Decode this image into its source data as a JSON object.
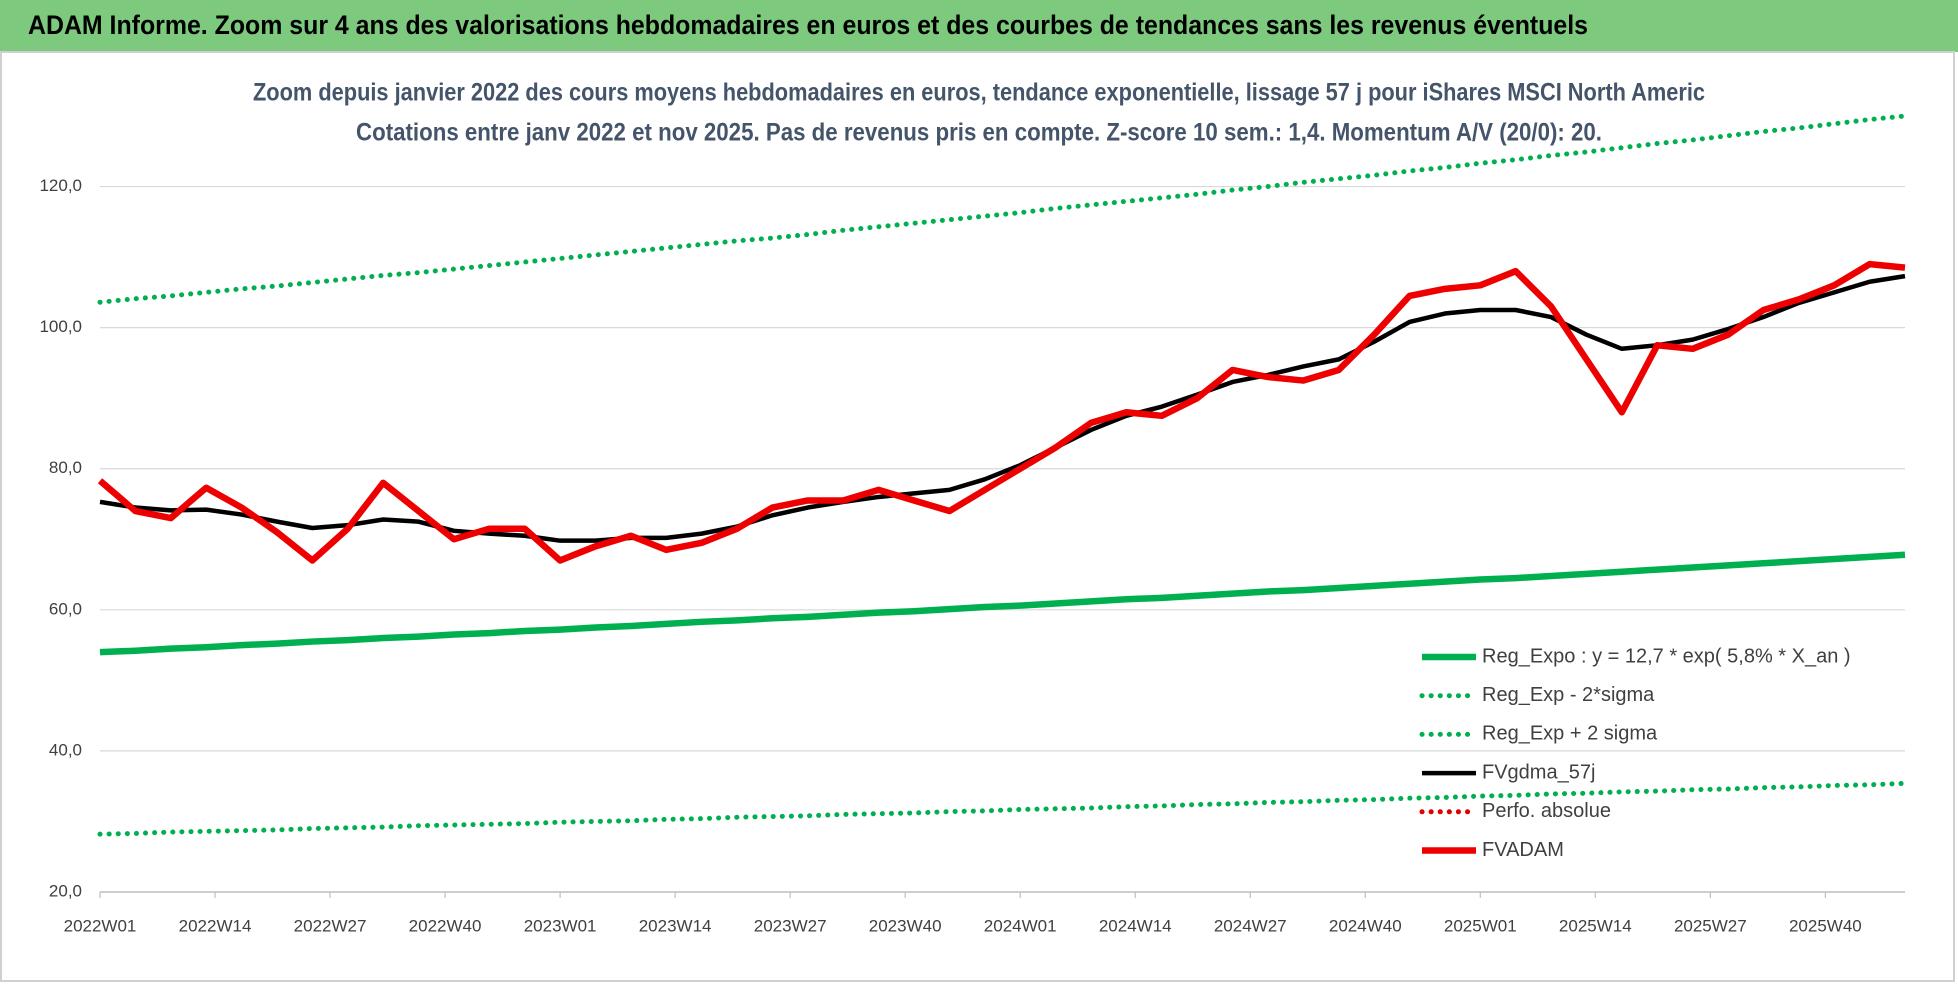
{
  "header": {
    "title": "ADAM Informe. Zoom sur 4 ans des valorisations hebdomadaires en euros et des courbes de tendances sans les revenus éventuels"
  },
  "chart_data": {
    "type": "line",
    "title": "Zoom depuis janvier 2022 des cours moyens hebdomadaires en euros, tendance exponentielle, lissage 57 j pour iShares MSCI North Americ",
    "subtitle": "Cotations entre janv 2022 et nov 2025. Pas de revenus pris en compte. Z-score 10 sem.: 1,4. Momentum A/V (20/0): 20.",
    "x": [
      0,
      4,
      8,
      12,
      16,
      20,
      24,
      28,
      32,
      36,
      40,
      44,
      48,
      52,
      56,
      60,
      64,
      68,
      72,
      76,
      80,
      84,
      88,
      92,
      96,
      100,
      104,
      108,
      112,
      116,
      120,
      124,
      128,
      132,
      136,
      140,
      144,
      148,
      152,
      156,
      160,
      164,
      168,
      172,
      176,
      180,
      184,
      188,
      192,
      196,
      200,
      204
    ],
    "xlim": [
      0,
      204
    ],
    "xticks": [
      {
        "value": 0,
        "label": "2022W01"
      },
      {
        "value": 13,
        "label": "2022W14"
      },
      {
        "value": 26,
        "label": "2022W27"
      },
      {
        "value": 39,
        "label": "2022W40"
      },
      {
        "value": 52,
        "label": "2023W01"
      },
      {
        "value": 65,
        "label": "2023W14"
      },
      {
        "value": 78,
        "label": "2023W27"
      },
      {
        "value": 91,
        "label": "2023W40"
      },
      {
        "value": 104,
        "label": "2024W01"
      },
      {
        "value": 117,
        "label": "2024W14"
      },
      {
        "value": 130,
        "label": "2024W27"
      },
      {
        "value": 143,
        "label": "2024W40"
      },
      {
        "value": 156,
        "label": "2025W01"
      },
      {
        "value": 169,
        "label": "2025W14"
      },
      {
        "value": 182,
        "label": "2025W27"
      },
      {
        "value": 195,
        "label": "2025W40"
      }
    ],
    "ylim": [
      20,
      130
    ],
    "yticks": [
      {
        "value": 20,
        "label": "20,0"
      },
      {
        "value": 40,
        "label": "40,0"
      },
      {
        "value": 60,
        "label": "60,0"
      },
      {
        "value": 80,
        "label": "80,0"
      },
      {
        "value": 100,
        "label": "100,0"
      },
      {
        "value": 120,
        "label": "120,0"
      }
    ],
    "grid": true,
    "legend": "right",
    "series": [
      {
        "name": "Reg_Expo : y = 12,7 * exp( 5,8% *  X_an )",
        "color": "#00b050",
        "style": "solid",
        "values": [
          54.0,
          54.2,
          54.5,
          54.7,
          55.0,
          55.2,
          55.5,
          55.7,
          56.0,
          56.2,
          56.5,
          56.7,
          57.0,
          57.2,
          57.5,
          57.7,
          58.0,
          58.3,
          58.5,
          58.8,
          59.0,
          59.3,
          59.6,
          59.8,
          60.1,
          60.4,
          60.6,
          60.9,
          61.2,
          61.5,
          61.7,
          62.0,
          62.3,
          62.6,
          62.8,
          63.1,
          63.4,
          63.7,
          64.0,
          64.3,
          64.5,
          64.8,
          65.1,
          65.4,
          65.7,
          66.0,
          66.3,
          66.6,
          66.9,
          67.2,
          67.5,
          67.8
        ]
      },
      {
        "name": "Reg_Exp - 2*sigma",
        "color": "#00b050",
        "style": "dotted",
        "values": [
          28.2,
          28.3,
          28.5,
          28.6,
          28.7,
          28.8,
          29.0,
          29.1,
          29.2,
          29.4,
          29.5,
          29.6,
          29.7,
          29.9,
          30.0,
          30.1,
          30.3,
          30.4,
          30.6,
          30.7,
          30.8,
          31.0,
          31.1,
          31.2,
          31.4,
          31.5,
          31.7,
          31.8,
          31.9,
          32.1,
          32.2,
          32.4,
          32.5,
          32.7,
          32.8,
          33.0,
          33.1,
          33.3,
          33.4,
          33.6,
          33.7,
          33.9,
          34.0,
          34.2,
          34.3,
          34.5,
          34.6,
          34.8,
          34.9,
          35.1,
          35.2,
          35.4
        ]
      },
      {
        "name": "Reg_Exp + 2 sigma",
        "color": "#00b050",
        "style": "dotted",
        "values": [
          103.6,
          104.1,
          104.5,
          105.0,
          105.5,
          105.9,
          106.4,
          106.9,
          107.4,
          107.8,
          108.3,
          108.8,
          109.3,
          109.8,
          110.3,
          110.8,
          111.3,
          111.8,
          112.3,
          112.7,
          113.2,
          113.8,
          114.3,
          114.8,
          115.3,
          115.8,
          116.3,
          116.9,
          117.4,
          117.9,
          118.4,
          118.9,
          119.5,
          120.0,
          120.6,
          121.1,
          121.6,
          122.2,
          122.7,
          123.3,
          123.8,
          124.4,
          124.9,
          125.5,
          126.1,
          126.6,
          127.2,
          127.8,
          128.3,
          128.9,
          129.5,
          130.0
        ]
      },
      {
        "name": "FVgdma_57j",
        "color": "#000000",
        "style": "solid",
        "values": [
          75.3,
          74.5,
          74.1,
          74.2,
          73.5,
          72.5,
          71.6,
          72.0,
          72.8,
          72.5,
          71.2,
          70.8,
          70.5,
          69.8,
          69.8,
          70.2,
          70.2,
          70.8,
          71.8,
          73.4,
          74.5,
          75.3,
          76.0,
          76.5,
          77.0,
          78.5,
          80.5,
          83.0,
          85.5,
          87.5,
          88.8,
          90.5,
          92.3,
          93.3,
          94.5,
          95.5,
          98.0,
          100.8,
          102.0,
          102.5,
          102.5,
          101.5,
          99.0,
          97.0,
          97.5,
          98.3,
          99.8,
          101.5,
          103.5,
          105.0,
          106.5,
          107.3
        ]
      },
      {
        "name": "Perfo. absolue",
        "color": "#e00000",
        "style": "dotted",
        "values": [
          null,
          null,
          null,
          null,
          null,
          null,
          null,
          null,
          null,
          null,
          null,
          null,
          null,
          null,
          null,
          null,
          null,
          null,
          null,
          null,
          null,
          null,
          null,
          null,
          null,
          null,
          null,
          null,
          null,
          null,
          null,
          null,
          null,
          null,
          null,
          null,
          null,
          null,
          null,
          null,
          null,
          null,
          null,
          null,
          null,
          null,
          null,
          null,
          null,
          null,
          null,
          null
        ]
      },
      {
        "name": "FVADAM",
        "color": "#ee0000",
        "style": "solid",
        "values": [
          78.3,
          74.0,
          73.0,
          77.3,
          74.5,
          71.0,
          67.0,
          71.5,
          78.0,
          74.0,
          70.0,
          71.5,
          71.5,
          67.0,
          69.0,
          70.5,
          68.5,
          69.5,
          71.5,
          74.5,
          75.5,
          75.5,
          77.0,
          75.5,
          74.0,
          77.0,
          80.0,
          83.0,
          86.5,
          88.0,
          87.5,
          90.0,
          94.0,
          93.0,
          92.5,
          94.0,
          99.0,
          104.5,
          105.5,
          106.0,
          108.0,
          103.0,
          95.5,
          88.0,
          97.5,
          97.0,
          99.0,
          102.5,
          104.0,
          106.0,
          109.0,
          108.5
        ]
      }
    ]
  }
}
